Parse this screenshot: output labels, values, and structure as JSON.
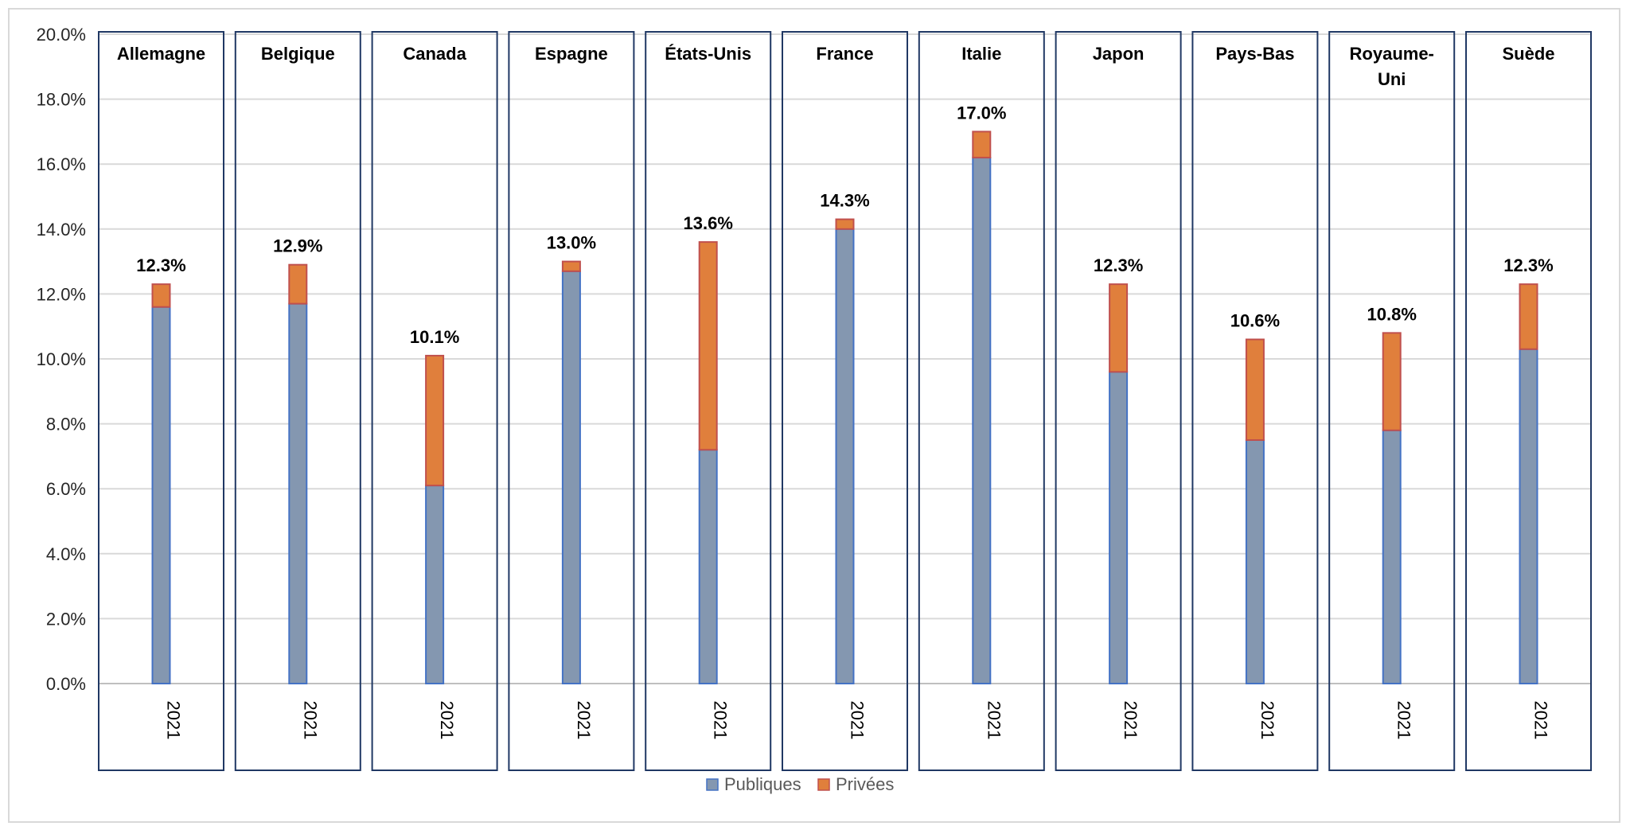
{
  "chart_data": {
    "type": "bar",
    "stacked": true,
    "title": "",
    "xlabel": "",
    "ylabel": "",
    "ylim": [
      0,
      20
    ],
    "y_ticks": [
      "0.0%",
      "2.0%",
      "4.0%",
      "6.0%",
      "8.0%",
      "10.0%",
      "12.0%",
      "14.0%",
      "16.0%",
      "18.0%",
      "20.0%"
    ],
    "grid": true,
    "legend_position": "bottom",
    "year": "2021",
    "panels": [
      {
        "label": "Allemagne",
        "label_lines": [
          "Allemagne"
        ],
        "publiques": 11.6,
        "privees": 0.7,
        "total_label": "12.3%"
      },
      {
        "label": "Belgique",
        "label_lines": [
          "Belgique"
        ],
        "publiques": 11.7,
        "privees": 1.2,
        "total_label": "12.9%"
      },
      {
        "label": "Canada",
        "label_lines": [
          "Canada"
        ],
        "publiques": 6.1,
        "privees": 4.0,
        "total_label": "10.1%"
      },
      {
        "label": "Espagne",
        "label_lines": [
          "Espagne"
        ],
        "publiques": 12.7,
        "privees": 0.3,
        "total_label": "13.0%"
      },
      {
        "label": "États-Unis",
        "label_lines": [
          "États-Unis"
        ],
        "publiques": 7.2,
        "privees": 6.4,
        "total_label": "13.6%"
      },
      {
        "label": "France",
        "label_lines": [
          "France"
        ],
        "publiques": 14.0,
        "privees": 0.3,
        "total_label": "14.3%"
      },
      {
        "label": "Italie",
        "label_lines": [
          "Italie"
        ],
        "publiques": 16.2,
        "privees": 0.8,
        "total_label": "17.0%"
      },
      {
        "label": "Japon",
        "label_lines": [
          "Japon"
        ],
        "publiques": 9.6,
        "privees": 2.7,
        "total_label": "12.3%"
      },
      {
        "label": "Pays-Bas",
        "label_lines": [
          "Pays-Bas"
        ],
        "publiques": 7.5,
        "privees": 3.1,
        "total_label": "10.6%"
      },
      {
        "label": "Royaume-Uni",
        "label_lines": [
          "Royaume-",
          "Uni"
        ],
        "publiques": 7.8,
        "privees": 3.0,
        "total_label": "10.8%"
      },
      {
        "label": "Suède",
        "label_lines": [
          "Suède"
        ],
        "publiques": 10.3,
        "privees": 2.0,
        "total_label": "12.3%"
      }
    ],
    "series": [
      {
        "name": "Publiques",
        "key": "publiques",
        "color": "#8497b0",
        "stroke": "#4472c4"
      },
      {
        "name": "Privées",
        "key": "privees",
        "color": "#e07f3c",
        "stroke": "#c0504d"
      }
    ],
    "colors": {
      "grid": "#d9d9d9",
      "panel_border": "#203864",
      "axis": "#bfbfbf"
    }
  }
}
